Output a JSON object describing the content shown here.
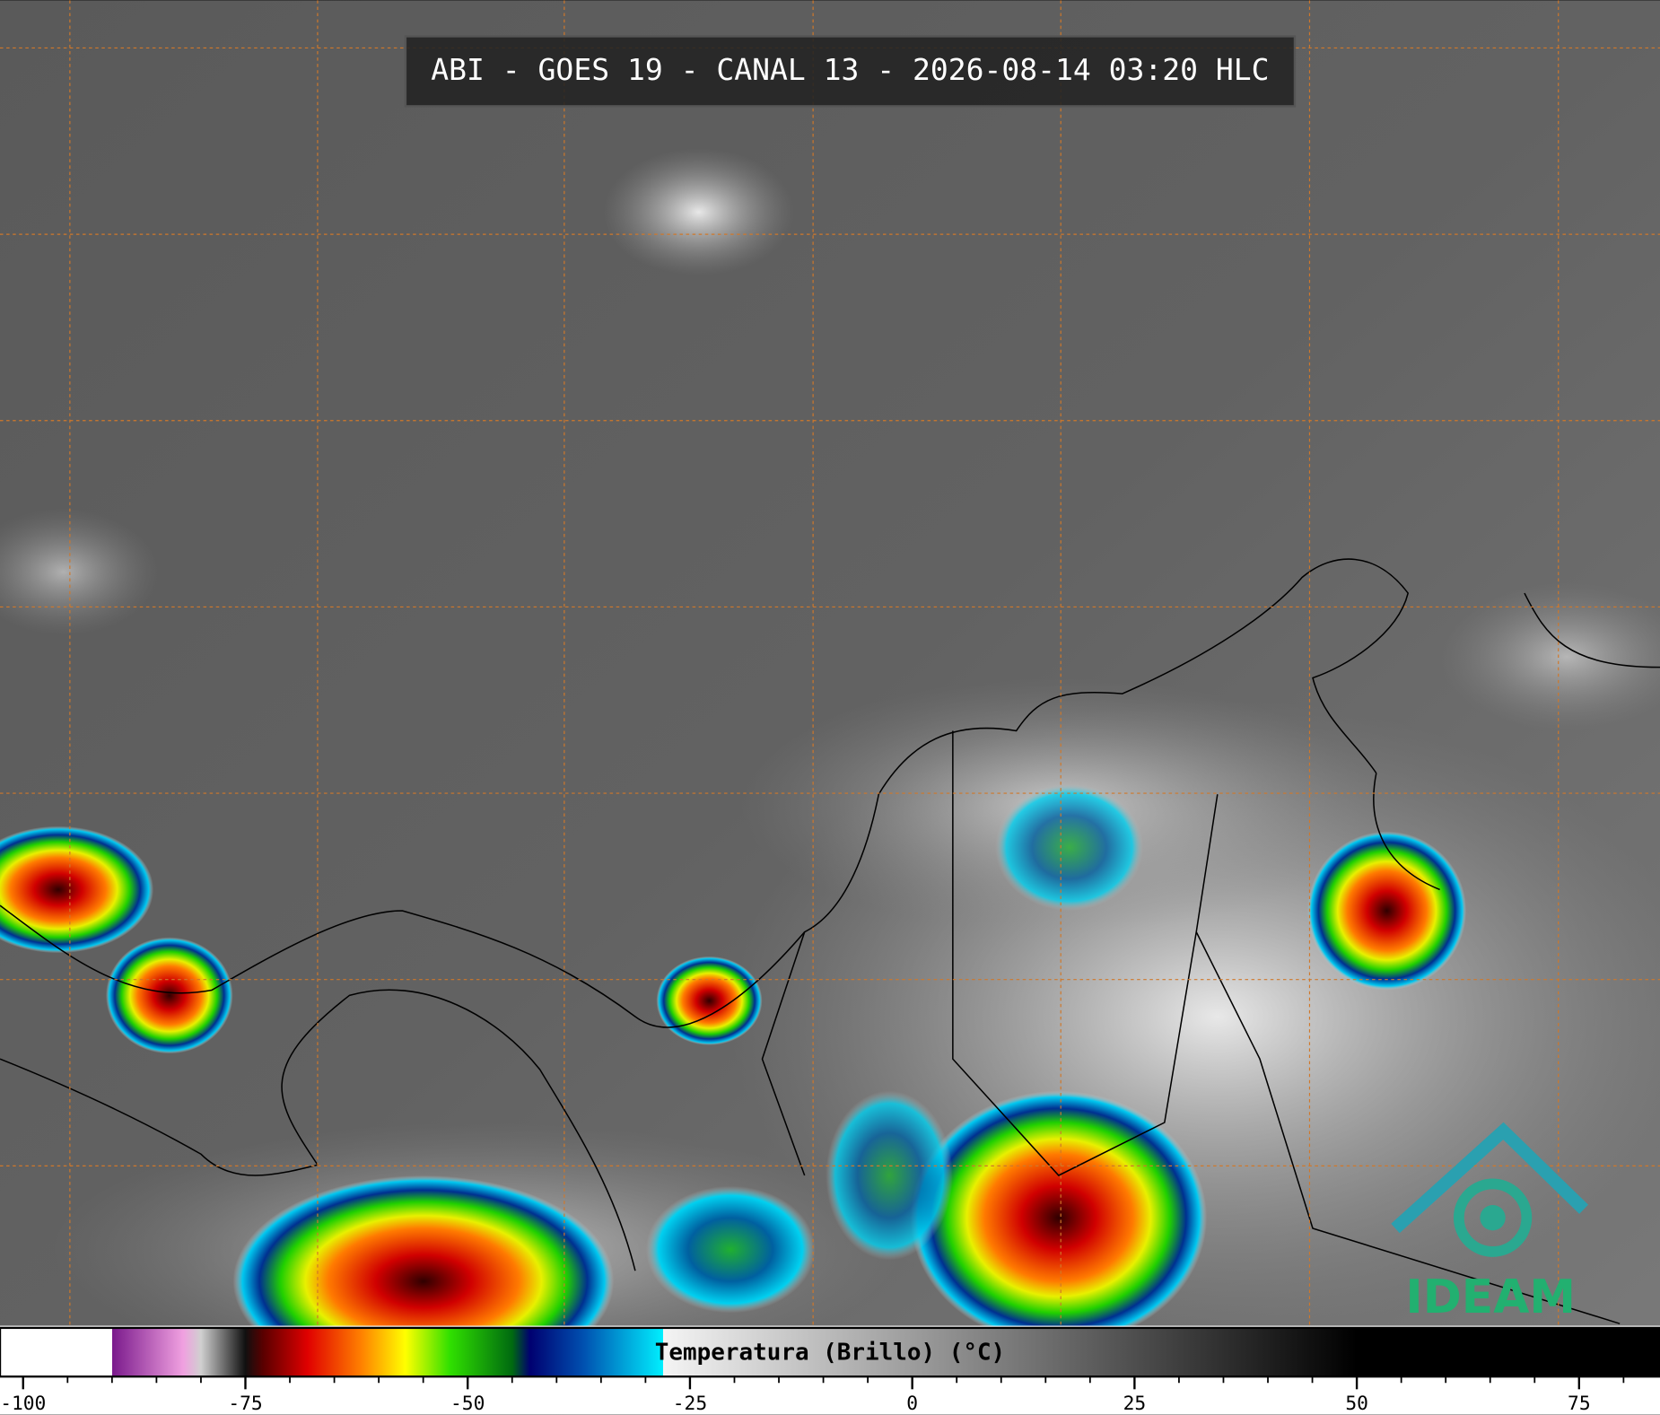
{
  "title": "ABI - GOES 19 - CANAL 13 - 2026-08-14 03:20 HLC",
  "logo": "IDEAM",
  "colorbar": {
    "label": "Temperatura (Brillo) (°C)",
    "lim": [
      -102.6,
      84.1
    ],
    "ticks": [
      -100,
      -75,
      -50,
      -25,
      0,
      25,
      50,
      75
    ],
    "minor_step": 5,
    "colorscale": [
      {
        "value": -90,
        "color": "#ffffff"
      },
      {
        "value": -90,
        "color": "#7a1a8c"
      },
      {
        "value": -82,
        "color": "#f0a0e0"
      },
      {
        "value": -80,
        "color": "#d0d0d0"
      },
      {
        "value": -75,
        "color": "#101010"
      },
      {
        "value": -73,
        "color": "#5a0000"
      },
      {
        "value": -68,
        "color": "#e00000"
      },
      {
        "value": -62,
        "color": "#ff8000"
      },
      {
        "value": -57,
        "color": "#ffff00"
      },
      {
        "value": -52,
        "color": "#30e000"
      },
      {
        "value": -45,
        "color": "#006a10"
      },
      {
        "value": -43,
        "color": "#000070"
      },
      {
        "value": -37,
        "color": "#0050b0"
      },
      {
        "value": -28,
        "color": "#00f0ff"
      },
      {
        "value": -28,
        "color": "#f4f4f4"
      },
      {
        "value": 50,
        "color": "#000000"
      },
      {
        "value": 84.1,
        "color": "#000000"
      }
    ]
  }
}
